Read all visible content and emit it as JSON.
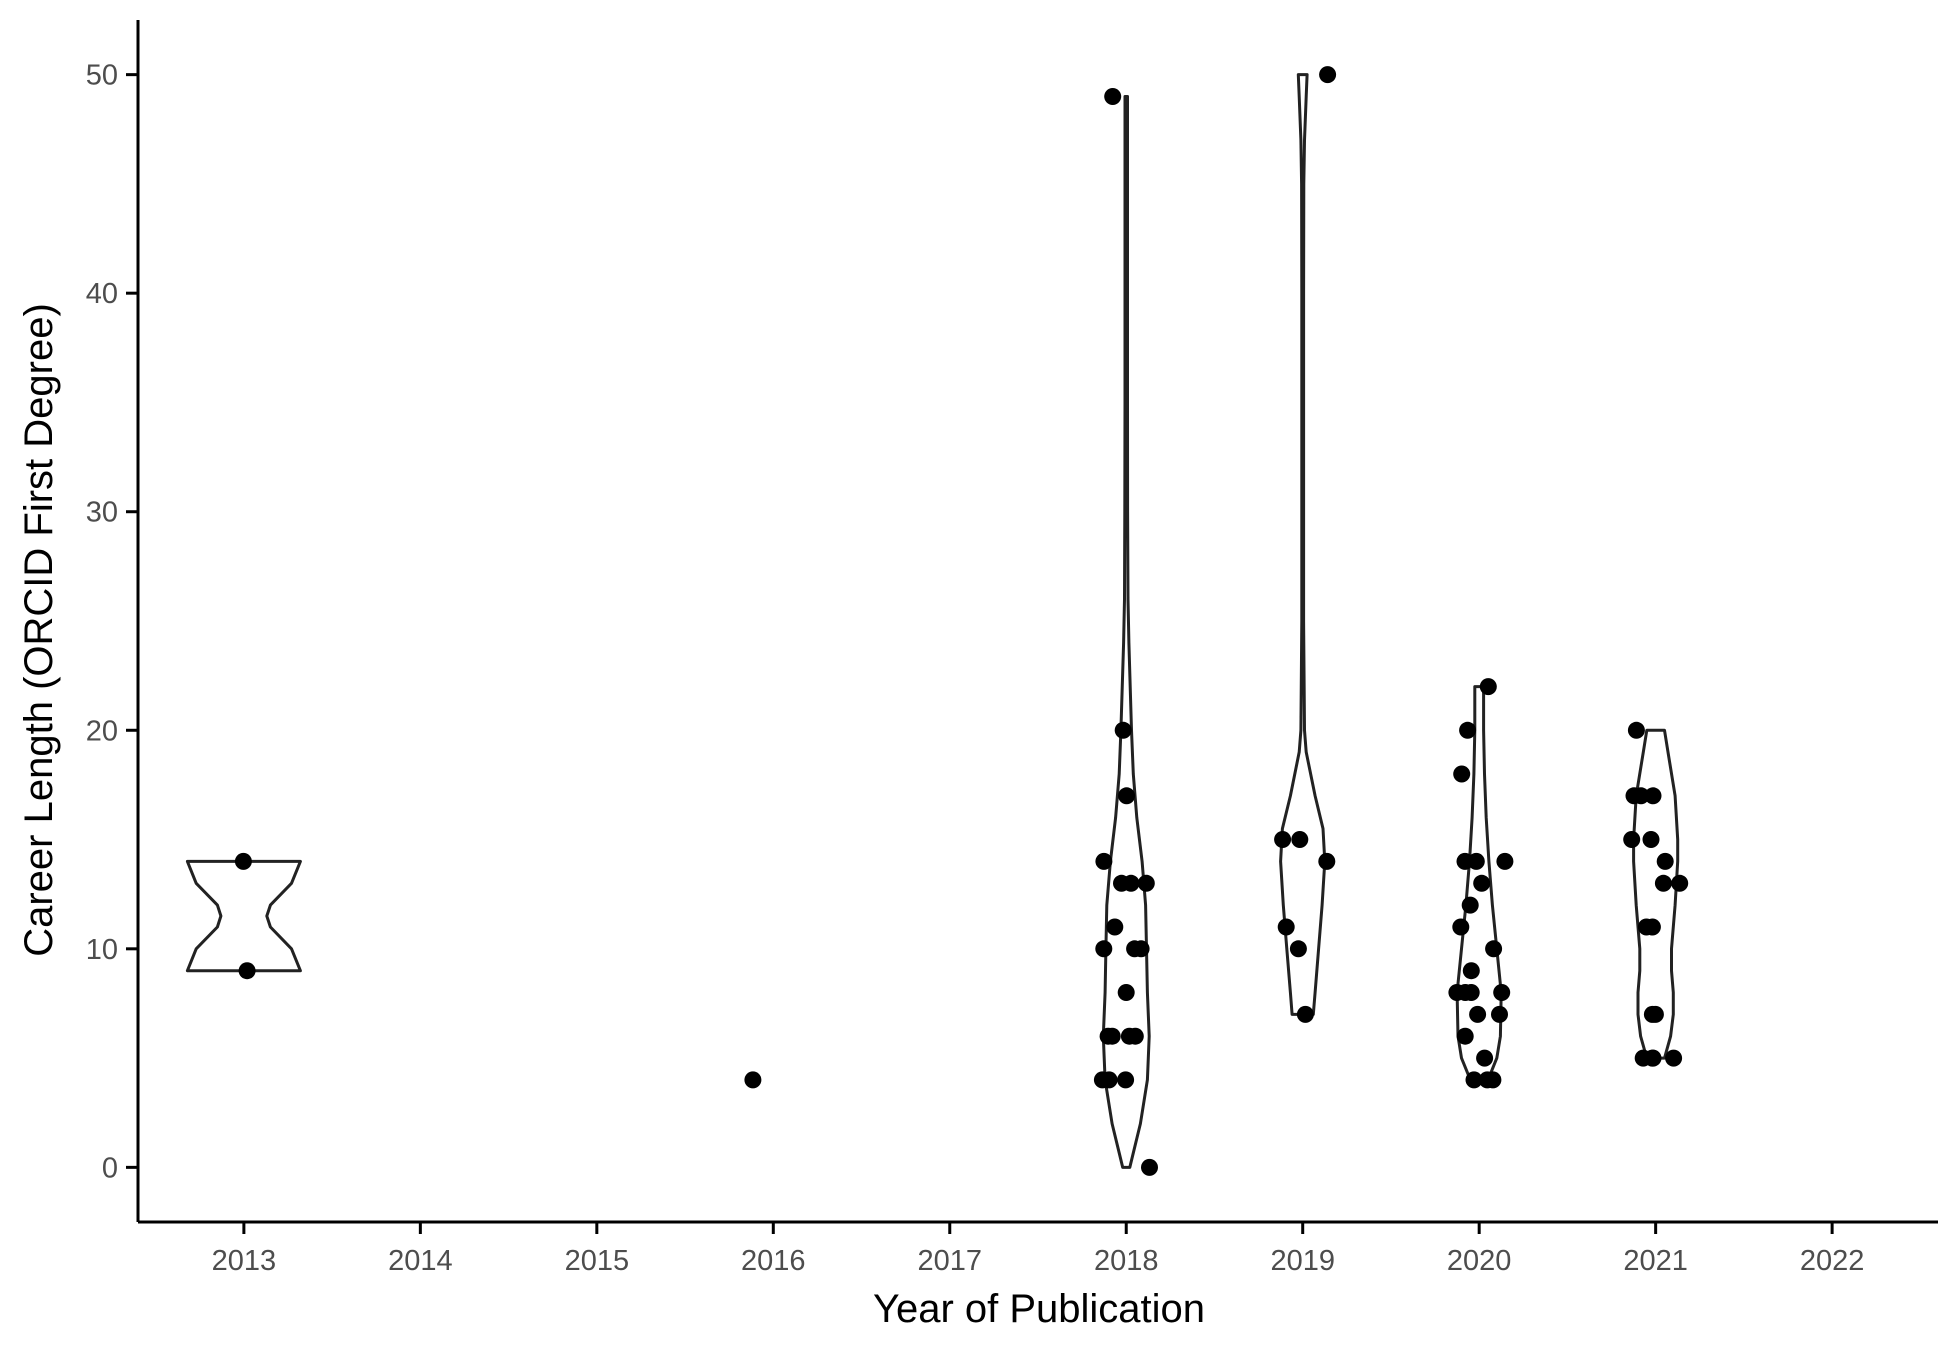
{
  "chart_data": {
    "type": "violin",
    "xlabel": "Year of Publication",
    "ylabel": "Career Length (ORCID First Degree)",
    "categories": [
      "2013",
      "2014",
      "2015",
      "2016",
      "2017",
      "2018",
      "2019",
      "2020",
      "2021",
      "2022"
    ],
    "ylim": [
      -2.5,
      52.5
    ],
    "yticks": [
      0,
      10,
      20,
      30,
      40,
      50
    ],
    "grid": false,
    "legend": "none",
    "colors": {
      "axis": "#000000",
      "violin_outline": "#222222",
      "points": "#000000",
      "tick_label": "#4d4d4d"
    },
    "points": [
      {
        "x": 2013,
        "y": 14
      },
      {
        "x": 2013,
        "y": 9
      },
      {
        "x": 2016,
        "y": 4
      },
      {
        "x": 2018,
        "y": 49
      },
      {
        "x": 2018,
        "y": 20
      },
      {
        "x": 2018,
        "y": 17
      },
      {
        "x": 2018,
        "y": 14
      },
      {
        "x": 2018,
        "y": 13
      },
      {
        "x": 2018,
        "y": 13
      },
      {
        "x": 2018,
        "y": 13
      },
      {
        "x": 2018,
        "y": 11
      },
      {
        "x": 2018,
        "y": 10
      },
      {
        "x": 2018,
        "y": 10
      },
      {
        "x": 2018,
        "y": 10
      },
      {
        "x": 2018,
        "y": 8
      },
      {
        "x": 2018,
        "y": 6
      },
      {
        "x": 2018,
        "y": 6
      },
      {
        "x": 2018,
        "y": 6
      },
      {
        "x": 2018,
        "y": 6
      },
      {
        "x": 2018,
        "y": 4
      },
      {
        "x": 2018,
        "y": 4
      },
      {
        "x": 2018,
        "y": 4
      },
      {
        "x": 2018,
        "y": 0
      },
      {
        "x": 2019,
        "y": 50
      },
      {
        "x": 2019,
        "y": 15
      },
      {
        "x": 2019,
        "y": 15
      },
      {
        "x": 2019,
        "y": 14
      },
      {
        "x": 2019,
        "y": 11
      },
      {
        "x": 2019,
        "y": 10
      },
      {
        "x": 2019,
        "y": 7
      },
      {
        "x": 2020,
        "y": 22
      },
      {
        "x": 2020,
        "y": 20
      },
      {
        "x": 2020,
        "y": 18
      },
      {
        "x": 2020,
        "y": 14
      },
      {
        "x": 2020,
        "y": 14
      },
      {
        "x": 2020,
        "y": 14
      },
      {
        "x": 2020,
        "y": 13
      },
      {
        "x": 2020,
        "y": 12
      },
      {
        "x": 2020,
        "y": 11
      },
      {
        "x": 2020,
        "y": 10
      },
      {
        "x": 2020,
        "y": 9
      },
      {
        "x": 2020,
        "y": 8
      },
      {
        "x": 2020,
        "y": 8
      },
      {
        "x": 2020,
        "y": 8
      },
      {
        "x": 2020,
        "y": 8
      },
      {
        "x": 2020,
        "y": 7
      },
      {
        "x": 2020,
        "y": 7
      },
      {
        "x": 2020,
        "y": 6
      },
      {
        "x": 2020,
        "y": 5
      },
      {
        "x": 2020,
        "y": 4
      },
      {
        "x": 2020,
        "y": 4
      },
      {
        "x": 2020,
        "y": 4
      },
      {
        "x": 2021,
        "y": 20
      },
      {
        "x": 2021,
        "y": 17
      },
      {
        "x": 2021,
        "y": 17
      },
      {
        "x": 2021,
        "y": 17
      },
      {
        "x": 2021,
        "y": 15
      },
      {
        "x": 2021,
        "y": 15
      },
      {
        "x": 2021,
        "y": 14
      },
      {
        "x": 2021,
        "y": 13
      },
      {
        "x": 2021,
        "y": 13
      },
      {
        "x": 2021,
        "y": 11
      },
      {
        "x": 2021,
        "y": 11
      },
      {
        "x": 2021,
        "y": 7
      },
      {
        "x": 2021,
        "y": 7
      },
      {
        "x": 2021,
        "y": 5
      },
      {
        "x": 2021,
        "y": 5
      },
      {
        "x": 2021,
        "y": 5
      },
      {
        "x": 2021,
        "y": 5
      }
    ],
    "violins": [
      {
        "category": "2013",
        "profile": [
          [
            9,
            0.32
          ],
          [
            10,
            0.27
          ],
          [
            11,
            0.15
          ],
          [
            11.5,
            0.13
          ],
          [
            12,
            0.15
          ],
          [
            13,
            0.27
          ],
          [
            14,
            0.32
          ]
        ]
      },
      {
        "category": "2018",
        "profile": [
          [
            0,
            0.02
          ],
          [
            1,
            0.05
          ],
          [
            2,
            0.08
          ],
          [
            4,
            0.12
          ],
          [
            6,
            0.13
          ],
          [
            8,
            0.12
          ],
          [
            10,
            0.115
          ],
          [
            12,
            0.11
          ],
          [
            14,
            0.09
          ],
          [
            16,
            0.06
          ],
          [
            18,
            0.04
          ],
          [
            20,
            0.03
          ],
          [
            24,
            0.015
          ],
          [
            26,
            0.01
          ],
          [
            30,
            0.008
          ],
          [
            35,
            0.007
          ],
          [
            40,
            0.007
          ],
          [
            45,
            0.007
          ],
          [
            49,
            0.007
          ]
        ]
      },
      {
        "category": "2019",
        "profile": [
          [
            7,
            0.06
          ],
          [
            8,
            0.07
          ],
          [
            10,
            0.09
          ],
          [
            12,
            0.11
          ],
          [
            14,
            0.125
          ],
          [
            15.5,
            0.115
          ],
          [
            17,
            0.07
          ],
          [
            19,
            0.02
          ],
          [
            20,
            0.01
          ],
          [
            25,
            0.005
          ],
          [
            30,
            0.005
          ],
          [
            40,
            0.005
          ],
          [
            45,
            0.006
          ],
          [
            47,
            0.01
          ],
          [
            49,
            0.02
          ],
          [
            50,
            0.025
          ]
        ]
      },
      {
        "category": "2020",
        "profile": [
          [
            4,
            0.05
          ],
          [
            5,
            0.1
          ],
          [
            6,
            0.12
          ],
          [
            8,
            0.125
          ],
          [
            10,
            0.1
          ],
          [
            12,
            0.075
          ],
          [
            14,
            0.055
          ],
          [
            16,
            0.04
          ],
          [
            18,
            0.03
          ],
          [
            20,
            0.025
          ],
          [
            22,
            0.025
          ]
        ]
      },
      {
        "category": "2021",
        "profile": [
          [
            5,
            0.05
          ],
          [
            6,
            0.085
          ],
          [
            7,
            0.1
          ],
          [
            8,
            0.1
          ],
          [
            9,
            0.09
          ],
          [
            10,
            0.09
          ],
          [
            12,
            0.11
          ],
          [
            14,
            0.125
          ],
          [
            15,
            0.125
          ],
          [
            17,
            0.11
          ],
          [
            19,
            0.07
          ],
          [
            20,
            0.05
          ]
        ]
      }
    ]
  }
}
